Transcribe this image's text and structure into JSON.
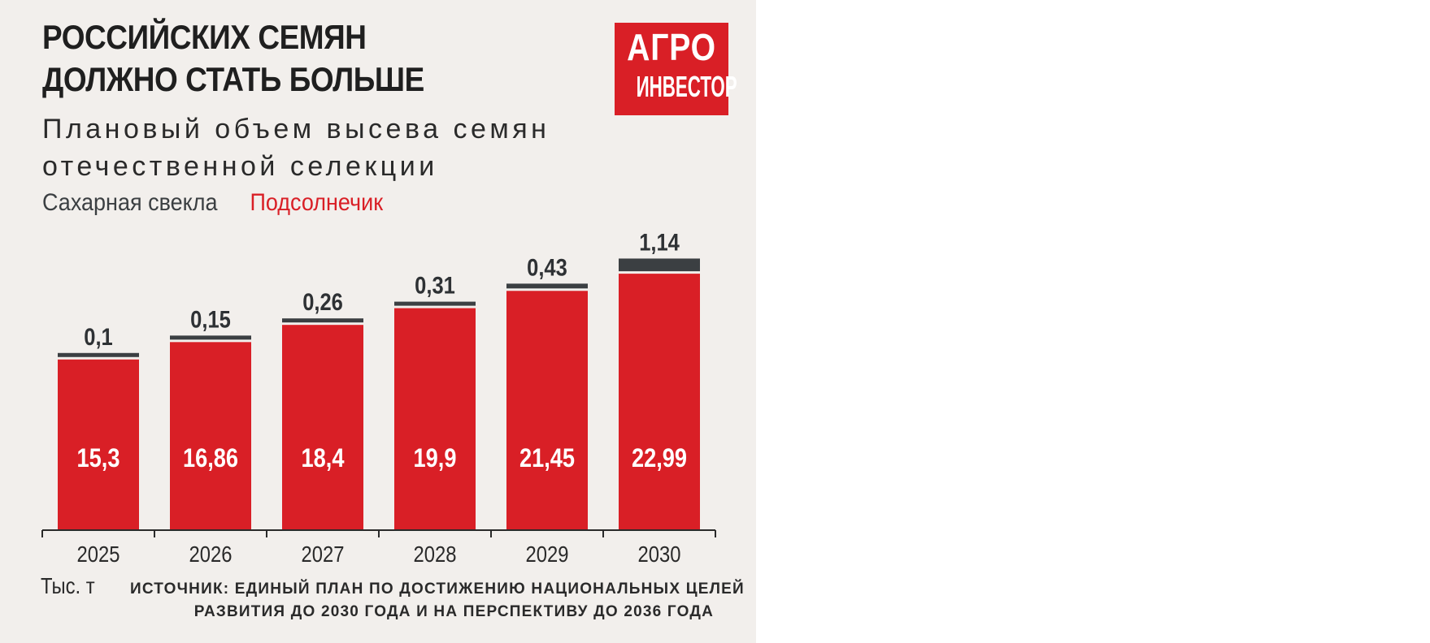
{
  "title_lines": [
    "РОССИЙСКИХ СЕМЯН",
    "ДОЛЖНО СТАТЬ БОЛЬШЕ"
  ],
  "subtitle_lines": [
    "Плановый объем высева семян",
    "отечественной селекции"
  ],
  "logo": {
    "line1": "АГРО",
    "line2": "ИНВЕСТОР"
  },
  "unit": "Тыс. т",
  "source_lines": [
    "ИСТОЧНИК: ЕДИНЫЙ ПЛАН ПО ДОСТИЖЕНИЮ НАЦИОНАЛЬНЫХ ЦЕЛЕЙ",
    "РАЗВИТИЯ ДО 2030 ГОДА И НА ПЕРСПЕКТИВУ ДО 2036 ГОДА"
  ],
  "colors": {
    "background": "#f2efec",
    "sunflower": "#d91f26",
    "sugar_beet": "#3b3f42",
    "text": "#1f1f1f"
  },
  "chart_data": {
    "type": "bar",
    "stacked": true,
    "categories": [
      "2025",
      "2026",
      "2027",
      "2028",
      "2029",
      "2030"
    ],
    "series": [
      {
        "name": "Подсолнечик",
        "color": "#d91f26",
        "values": [
          15.3,
          16.86,
          18.4,
          19.9,
          21.45,
          22.99
        ],
        "labels": [
          "15,3",
          "16,86",
          "18,4",
          "19,9",
          "21,45",
          "22,99"
        ]
      },
      {
        "name": "Сахарная свекла",
        "color": "#3b3f42",
        "values": [
          0.1,
          0.15,
          0.26,
          0.31,
          0.43,
          1.14
        ],
        "labels": [
          "0,1",
          "0,15",
          "0,26",
          "0,31",
          "0,43",
          "1,14"
        ]
      }
    ],
    "legend_order": [
      "Сахарная свекла",
      "Подсолнечик"
    ],
    "ylim": [
      0,
      24.6
    ],
    "grid": false,
    "legend": "top-left"
  }
}
